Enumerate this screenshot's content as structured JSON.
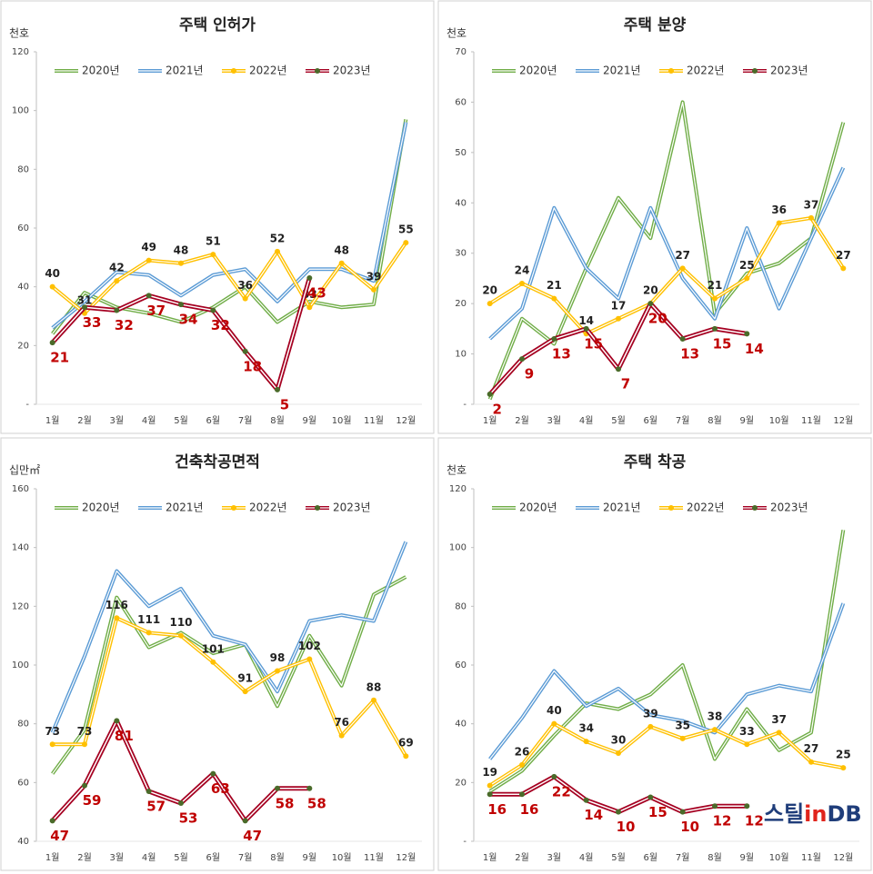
{
  "chart_data": [
    {
      "type": "line",
      "title": "주택 인허가",
      "unit": "천호",
      "categories": [
        "1월",
        "2월",
        "3월",
        "4월",
        "5월",
        "6월",
        "7월",
        "8월",
        "9월",
        "10월",
        "11월",
        "12월"
      ],
      "ylim": [
        0,
        120
      ],
      "yticks": [
        {
          "value": 0,
          "label": "-"
        },
        20,
        40,
        60,
        80,
        100,
        120
      ],
      "series": [
        {
          "name": "2020년",
          "color": "#70ad47",
          "values": [
            24,
            38,
            33,
            31,
            28,
            33,
            40,
            28,
            35,
            33,
            34,
            97
          ]
        },
        {
          "name": "2021년",
          "color": "#5b9bd5",
          "values": [
            26,
            35,
            45,
            44,
            37,
            44,
            46,
            35,
            46,
            46,
            42,
            96
          ]
        },
        {
          "name": "2022년",
          "color": "#ffc000",
          "values": [
            40,
            31,
            42,
            49,
            48,
            51,
            36,
            52,
            33,
            48,
            39,
            55
          ]
        },
        {
          "name": "2023년",
          "color": "#a50021",
          "values": [
            21,
            33,
            32,
            37,
            34,
            32,
            18,
            5,
            43,
            null,
            null,
            null
          ]
        }
      ]
    },
    {
      "type": "line",
      "title": "주택 분양",
      "unit": "천호",
      "categories": [
        "1월",
        "2월",
        "3월",
        "4월",
        "5월",
        "6월",
        "7월",
        "8월",
        "9월",
        "10월",
        "11월",
        "12월"
      ],
      "ylim": [
        0,
        70
      ],
      "yticks": [
        {
          "value": 0,
          "label": "-"
        },
        10,
        20,
        30,
        40,
        50,
        60,
        70
      ],
      "series": [
        {
          "name": "2020년",
          "color": "#70ad47",
          "values": [
            1,
            17,
            12,
            27,
            41,
            33,
            60,
            18,
            26,
            28,
            33,
            56
          ]
        },
        {
          "name": "2021년",
          "color": "#5b9bd5",
          "values": [
            13,
            19,
            39,
            27,
            21,
            39,
            25,
            17,
            35,
            19,
            33,
            47
          ]
        },
        {
          "name": "2022년",
          "color": "#ffc000",
          "values": [
            20,
            24,
            21,
            14,
            17,
            20,
            27,
            21,
            25,
            36,
            37,
            27
          ]
        },
        {
          "name": "2023년",
          "color": "#a50021",
          "values": [
            2,
            9,
            13,
            15,
            7,
            20,
            13,
            15,
            14,
            null,
            null,
            null
          ]
        }
      ]
    },
    {
      "type": "line",
      "title": "건축착공면적",
      "unit": "십만㎡",
      "categories": [
        "1월",
        "2월",
        "3월",
        "4월",
        "5월",
        "6월",
        "7월",
        "8월",
        "9월",
        "10월",
        "11월",
        "12월"
      ],
      "ylim": [
        40,
        160
      ],
      "yticks": [
        40,
        60,
        80,
        100,
        120,
        140,
        160
      ],
      "series": [
        {
          "name": "2020년",
          "color": "#70ad47",
          "values": [
            63,
            78,
            123,
            106,
            111,
            104,
            107,
            86,
            110,
            93,
            124,
            130
          ]
        },
        {
          "name": "2021년",
          "color": "#5b9bd5",
          "values": [
            77,
            103,
            132,
            120,
            126,
            110,
            107,
            91,
            115,
            117,
            115,
            142
          ]
        },
        {
          "name": "2022년",
          "color": "#ffc000",
          "values": [
            73,
            73,
            116,
            111,
            110,
            101,
            91,
            98,
            102,
            76,
            88,
            69
          ]
        },
        {
          "name": "2023년",
          "color": "#a50021",
          "values": [
            47,
            59,
            81,
            57,
            53,
            63,
            47,
            58,
            58,
            null,
            null,
            null
          ]
        }
      ]
    },
    {
      "type": "line",
      "title": "주택 착공",
      "unit": "천호",
      "categories": [
        "1월",
        "2월",
        "3월",
        "4월",
        "5월",
        "6월",
        "7월",
        "8월",
        "9월",
        "10월",
        "11월",
        "12월"
      ],
      "ylim": [
        0,
        120
      ],
      "yticks": [
        {
          "value": 0,
          "label": "-"
        },
        20,
        40,
        60,
        80,
        100,
        120
      ],
      "series": [
        {
          "name": "2020년",
          "color": "#70ad47",
          "values": [
            17,
            24,
            36,
            47,
            45,
            50,
            60,
            28,
            45,
            31,
            37,
            106
          ]
        },
        {
          "name": "2021년",
          "color": "#5b9bd5",
          "values": [
            28,
            42,
            58,
            46,
            52,
            43,
            41,
            37,
            50,
            53,
            51,
            81
          ]
        },
        {
          "name": "2022년",
          "color": "#ffc000",
          "values": [
            19,
            26,
            40,
            34,
            30,
            39,
            35,
            38,
            33,
            37,
            27,
            25
          ]
        },
        {
          "name": "2023년",
          "color": "#a50021",
          "values": [
            16,
            16,
            22,
            14,
            10,
            15,
            10,
            12,
            12,
            null,
            null,
            null
          ]
        }
      ]
    }
  ],
  "watermark": [
    "스틸",
    "in",
    "DB"
  ]
}
